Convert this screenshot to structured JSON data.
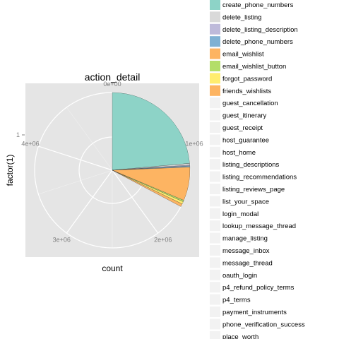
{
  "chart_data": {
    "type": "pie",
    "coord": "polar",
    "title": "action_detail",
    "xlabel": "count",
    "ylabel": "factor(1)",
    "y_tick": "1",
    "theta_ticks": [
      "0e+00",
      "1e+06",
      "2e+06",
      "3e+06",
      "4e+06"
    ],
    "theta_max": 5000000,
    "grid": true,
    "legend_position": "right",
    "slices": [
      {
        "category": "create_phone_numbers",
        "value": 1180000,
        "color": "#8dd3c7"
      },
      {
        "category": "delete_listing",
        "value": 18000,
        "color": "#d9d9d9"
      },
      {
        "category": "delete_listing_description",
        "value": 8000,
        "color": "#bebada"
      },
      {
        "category": "delete_phone_numbers",
        "value": 12000,
        "color": "#80b1d3"
      },
      {
        "category": "email_wishlist",
        "value": 350000,
        "color": "#fdb462"
      },
      {
        "category": "email_wishlist_button",
        "value": 15000,
        "color": "#b3de69"
      },
      {
        "category": "forgot_password",
        "value": 25000,
        "color": "#ffed6f"
      },
      {
        "category": "friends_wishlists",
        "value": 30000,
        "color": "#fdb462"
      }
    ],
    "legend_items": [
      "create_phone_numbers",
      "delete_listing",
      "delete_listing_description",
      "delete_phone_numbers",
      "email_wishlist",
      "email_wishlist_button",
      "forgot_password",
      "friends_wishlists",
      "guest_cancellation",
      "guest_itinerary",
      "guest_receipt",
      "host_guarantee",
      "host_home",
      "listing_descriptions",
      "listing_recommendations",
      "listing_reviews_page",
      "list_your_space",
      "login_modal",
      "lookup_message_thread",
      "manage_listing",
      "message_inbox",
      "message_thread",
      "oauth_login",
      "p4_refund_policy_terms",
      "p4_terms",
      "payment_instruments",
      "phone_verification_success",
      "place_worth"
    ]
  }
}
